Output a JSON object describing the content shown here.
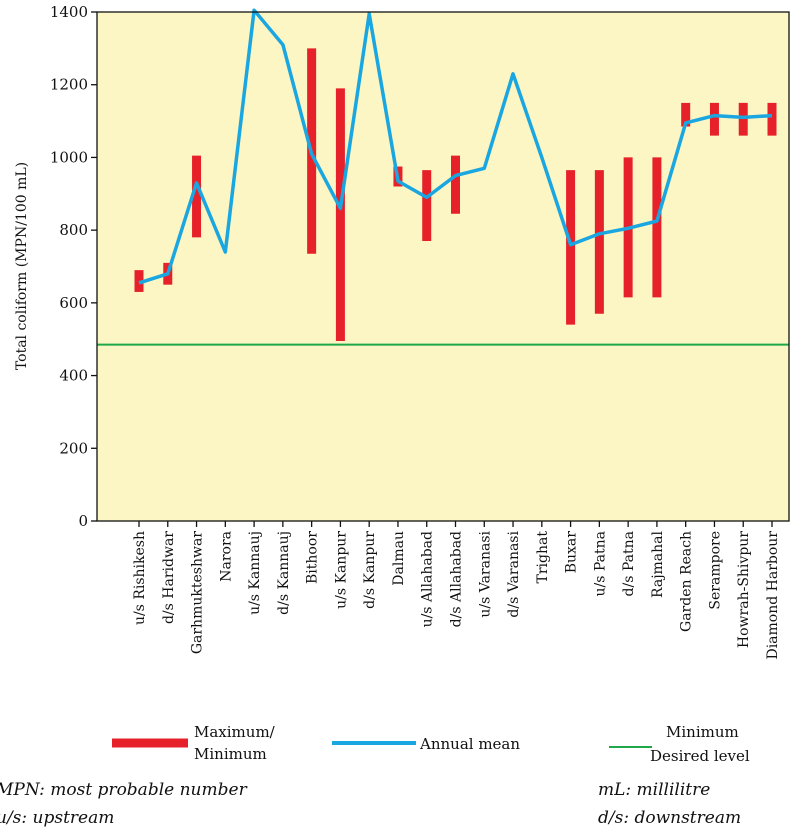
{
  "chart_data": {
    "type": "line",
    "title": "",
    "xlabel": "",
    "ylabel": "Total coliform (MPN/100 mL)",
    "ylim": [
      0,
      1400
    ],
    "yticks": [
      0,
      200,
      400,
      600,
      800,
      1000,
      1200,
      1400
    ],
    "grid": false,
    "categories": [
      "u/s Rishikesh",
      "d/s Haridwar",
      "Garhmukteshwar",
      "Narora",
      "u/s Kannauj",
      "d/s Kannauj",
      "Bithoor",
      "u/s Kanpur",
      "d/s Kanpur",
      "Dalmau",
      "u/s Allahabad",
      "d/s Allahabad",
      "u/s Varanasi",
      "d/s Varanasi",
      "Trighat",
      "Buxar",
      "u/s Patna",
      "d/s Patna",
      "Rajmahal",
      "Garden Reach",
      "Serampore",
      "Howrah-Shivpur",
      "Diamond Harbour"
    ],
    "series": [
      {
        "name": "Annual mean",
        "color": "#1aa7e1",
        "values": [
          655,
          680,
          930,
          740,
          1405,
          1310,
          1010,
          860,
          1395,
          935,
          890,
          950,
          970,
          1230,
          1000,
          760,
          790,
          805,
          825,
          1095,
          1115,
          1110,
          1115
        ]
      },
      {
        "name": "Maximum/ Minimum",
        "color": "#e6212a",
        "ranges": [
          [
            630,
            690
          ],
          [
            650,
            710
          ],
          [
            780,
            1005
          ],
          null,
          null,
          null,
          [
            735,
            1300
          ],
          [
            495,
            1190
          ],
          null,
          [
            920,
            975
          ],
          [
            770,
            965
          ],
          [
            845,
            1005
          ],
          null,
          null,
          null,
          [
            540,
            965
          ],
          [
            570,
            965
          ],
          [
            615,
            1000
          ],
          [
            615,
            1000
          ],
          [
            1085,
            1150
          ],
          [
            1060,
            1150
          ],
          [
            1060,
            1150
          ],
          [
            1060,
            1150
          ]
        ]
      }
    ],
    "reference_line": {
      "name": "Minimum Desired level",
      "value": 485,
      "color": "#1ea84a"
    },
    "plot_background": "#fbf6c3",
    "legend": [
      {
        "label_1": "Maximum/",
        "label_2": "Minimum",
        "color": "#e6212a"
      },
      {
        "label_1": "Annual mean",
        "color": "#1aa7e1"
      },
      {
        "label_1": "Minimum",
        "label_2": "Desired level",
        "color": "#1ea84a"
      }
    ]
  },
  "notes": {
    "mpn": "MPN: most probable number",
    "us": "u/s: upstream",
    "ml": "mL: millilitre",
    "ds": "d/s: downstream"
  }
}
